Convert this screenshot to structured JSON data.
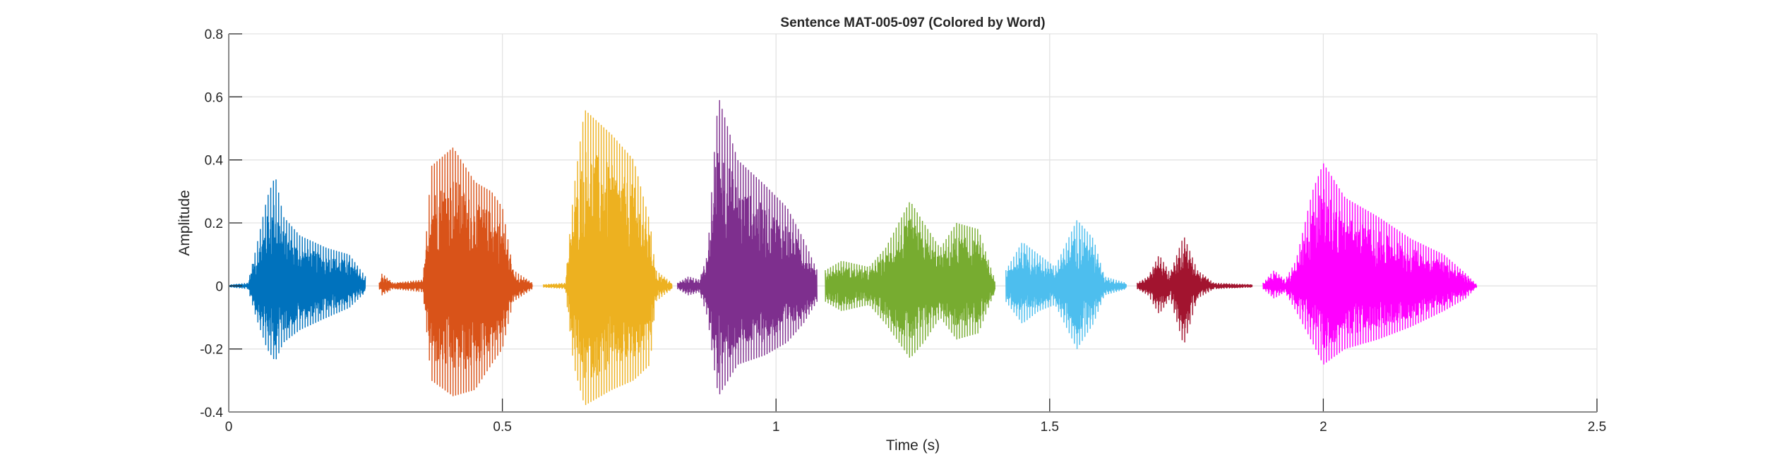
{
  "chart_data": {
    "type": "line",
    "title": "Sentence MAT-005-097 (Colored by Word)",
    "xlabel": "Time (s)",
    "ylabel": "Amplitude",
    "xlim": [
      0,
      2.5
    ],
    "ylim": [
      -0.4,
      0.8
    ],
    "xticks": [
      0,
      0.5,
      1,
      1.5,
      2,
      2.5
    ],
    "xtick_labels": [
      "0",
      "0.5",
      "1",
      "1.5",
      "2",
      "2.5"
    ],
    "yticks": [
      -0.4,
      -0.2,
      0,
      0.2,
      0.4,
      0.6,
      0.8
    ],
    "ytick_labels": [
      "-0.4",
      "-0.2",
      "0",
      "0.2",
      "0.4",
      "0.6",
      "0.8"
    ],
    "grid": true,
    "series": [
      {
        "name": "word-1",
        "color": "#0072BD",
        "start": 0.0,
        "end": 0.25,
        "envelope": [
          [
            0,
            0.004,
            0.004
          ],
          [
            0.035,
            0.01,
            0.01
          ],
          [
            0.05,
            0.12,
            0.1
          ],
          [
            0.07,
            0.28,
            0.2
          ],
          [
            0.085,
            0.35,
            0.24
          ],
          [
            0.1,
            0.22,
            0.18
          ],
          [
            0.13,
            0.16,
            0.14
          ],
          [
            0.18,
            0.12,
            0.1
          ],
          [
            0.22,
            0.1,
            0.07
          ],
          [
            0.25,
            0.03,
            0.02
          ]
        ]
      },
      {
        "name": "word-2",
        "color": "#D95319",
        "start": 0.275,
        "end": 0.555,
        "envelope": [
          [
            0.275,
            0.01,
            0.01
          ],
          [
            0.28,
            0.04,
            0.03
          ],
          [
            0.3,
            0.01,
            0.01
          ],
          [
            0.355,
            0.02,
            0.02
          ],
          [
            0.37,
            0.38,
            0.3
          ],
          [
            0.41,
            0.44,
            0.35
          ],
          [
            0.45,
            0.33,
            0.33
          ],
          [
            0.48,
            0.3,
            0.25
          ],
          [
            0.5,
            0.25,
            0.2
          ],
          [
            0.52,
            0.05,
            0.05
          ],
          [
            0.555,
            0.01,
            0.01
          ]
        ]
      },
      {
        "name": "word-3",
        "color": "#EDB120",
        "start": 0.575,
        "end": 0.81,
        "envelope": [
          [
            0.575,
            0.005,
            0.005
          ],
          [
            0.615,
            0.01,
            0.01
          ],
          [
            0.63,
            0.3,
            0.25
          ],
          [
            0.65,
            0.56,
            0.38
          ],
          [
            0.7,
            0.48,
            0.33
          ],
          [
            0.74,
            0.4,
            0.3
          ],
          [
            0.77,
            0.2,
            0.25
          ],
          [
            0.78,
            0.05,
            0.05
          ],
          [
            0.81,
            0.01,
            0.01
          ]
        ]
      },
      {
        "name": "word-4",
        "color": "#7E2F8E",
        "start": 0.82,
        "end": 1.075,
        "envelope": [
          [
            0.82,
            0.01,
            0.01
          ],
          [
            0.84,
            0.03,
            0.03
          ],
          [
            0.86,
            0.02,
            0.02
          ],
          [
            0.875,
            0.1,
            0.1
          ],
          [
            0.89,
            0.5,
            0.3
          ],
          [
            0.895,
            0.6,
            0.35
          ],
          [
            0.93,
            0.4,
            0.25
          ],
          [
            0.98,
            0.32,
            0.22
          ],
          [
            1.02,
            0.25,
            0.18
          ],
          [
            1.05,
            0.15,
            0.12
          ],
          [
            1.075,
            0.05,
            0.05
          ]
        ]
      },
      {
        "name": "word-5",
        "color": "#77AC30",
        "start": 1.09,
        "end": 1.4,
        "envelope": [
          [
            1.09,
            0.05,
            0.05
          ],
          [
            1.12,
            0.08,
            0.08
          ],
          [
            1.17,
            0.06,
            0.06
          ],
          [
            1.2,
            0.12,
            0.12
          ],
          [
            1.245,
            0.27,
            0.23
          ],
          [
            1.27,
            0.2,
            0.18
          ],
          [
            1.3,
            0.12,
            0.1
          ],
          [
            1.33,
            0.2,
            0.17
          ],
          [
            1.37,
            0.18,
            0.15
          ],
          [
            1.39,
            0.07,
            0.06
          ],
          [
            1.4,
            0.02,
            0.02
          ]
        ]
      },
      {
        "name": "word-6",
        "color": "#4DBEEE",
        "start": 1.42,
        "end": 1.64,
        "envelope": [
          [
            1.42,
            0.05,
            0.05
          ],
          [
            1.45,
            0.14,
            0.12
          ],
          [
            1.48,
            0.1,
            0.08
          ],
          [
            1.51,
            0.06,
            0.06
          ],
          [
            1.55,
            0.21,
            0.2
          ],
          [
            1.58,
            0.15,
            0.12
          ],
          [
            1.6,
            0.03,
            0.03
          ],
          [
            1.64,
            0.01,
            0.01
          ]
        ]
      },
      {
        "name": "word-7",
        "color": "#A2142F",
        "start": 1.66,
        "end": 1.87,
        "envelope": [
          [
            1.66,
            0.01,
            0.01
          ],
          [
            1.68,
            0.03,
            0.03
          ],
          [
            1.7,
            0.1,
            0.09
          ],
          [
            1.72,
            0.04,
            0.04
          ],
          [
            1.745,
            0.16,
            0.19
          ],
          [
            1.77,
            0.05,
            0.04
          ],
          [
            1.8,
            0.01,
            0.01
          ],
          [
            1.87,
            0.005,
            0.005
          ]
        ]
      },
      {
        "name": "word-8",
        "color": "#FF00FF",
        "start": 1.89,
        "end": 2.28,
        "envelope": [
          [
            1.89,
            0.01,
            0.01
          ],
          [
            1.91,
            0.05,
            0.04
          ],
          [
            1.93,
            0.02,
            0.02
          ],
          [
            1.95,
            0.08,
            0.08
          ],
          [
            1.98,
            0.3,
            0.18
          ],
          [
            2.0,
            0.39,
            0.25
          ],
          [
            2.04,
            0.28,
            0.2
          ],
          [
            2.1,
            0.22,
            0.17
          ],
          [
            2.16,
            0.15,
            0.13
          ],
          [
            2.22,
            0.1,
            0.08
          ],
          [
            2.26,
            0.04,
            0.04
          ],
          [
            2.28,
            0.005,
            0.005
          ]
        ]
      }
    ]
  }
}
